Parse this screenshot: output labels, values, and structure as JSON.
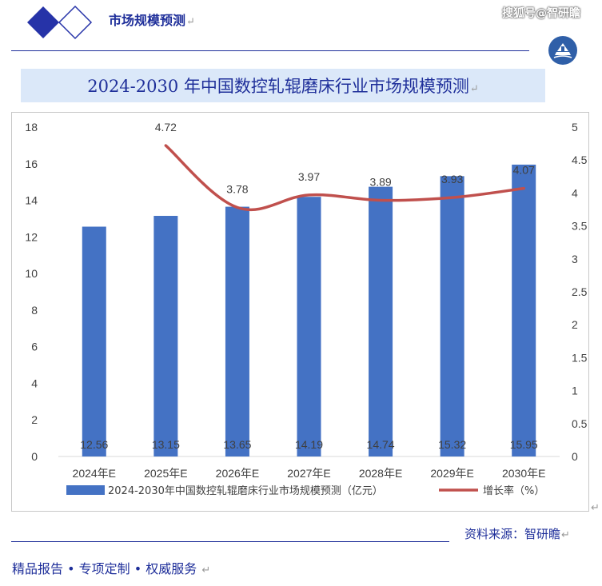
{
  "header": {
    "title": "市场规模预测",
    "return_mark": "↵",
    "watermark": "搜狐号@智研瞻"
  },
  "chart_data": {
    "type": "bar",
    "title": "2024-2030 年中国数控轧辊磨床行业市场规模预测",
    "categories": [
      "2024年E",
      "2025年E",
      "2026年E",
      "2027年E",
      "2028年E",
      "2029年E",
      "2030年E"
    ],
    "series": [
      {
        "name": "2024-2030年中国数控轧辊磨床行业市场规模预测（亿元）",
        "type": "bar",
        "axis": "left",
        "color": "#4472c4",
        "values": [
          12.56,
          13.15,
          13.65,
          14.19,
          14.74,
          15.32,
          15.95
        ],
        "labels": [
          "12.56",
          "13.15",
          "13.65",
          "14.19",
          "14.74",
          "15.32",
          "15.95"
        ]
      },
      {
        "name": "增长率（%）",
        "type": "line",
        "axis": "right",
        "color": "#c0504d",
        "values": [
          null,
          4.72,
          3.78,
          3.97,
          3.89,
          3.93,
          4.07
        ],
        "labels": [
          "",
          "4.72",
          "3.78",
          "3.97",
          "3.89",
          "3.93",
          "4.07"
        ]
      }
    ],
    "y_left": {
      "min": 0,
      "max": 18,
      "ticks": [
        "0",
        "2",
        "4",
        "6",
        "8",
        "10",
        "12",
        "14",
        "16",
        "18"
      ]
    },
    "y_right": {
      "min": 0,
      "max": 5,
      "ticks": [
        "0",
        "0.5",
        "1",
        "1.5",
        "2",
        "2.5",
        "3",
        "3.5",
        "4",
        "4.5",
        "5"
      ]
    },
    "grid": false,
    "legend_position": "bottom"
  },
  "source": "资料来源：智研瞻",
  "footer": "精品报告 •  专项定制 • 权威服务"
}
